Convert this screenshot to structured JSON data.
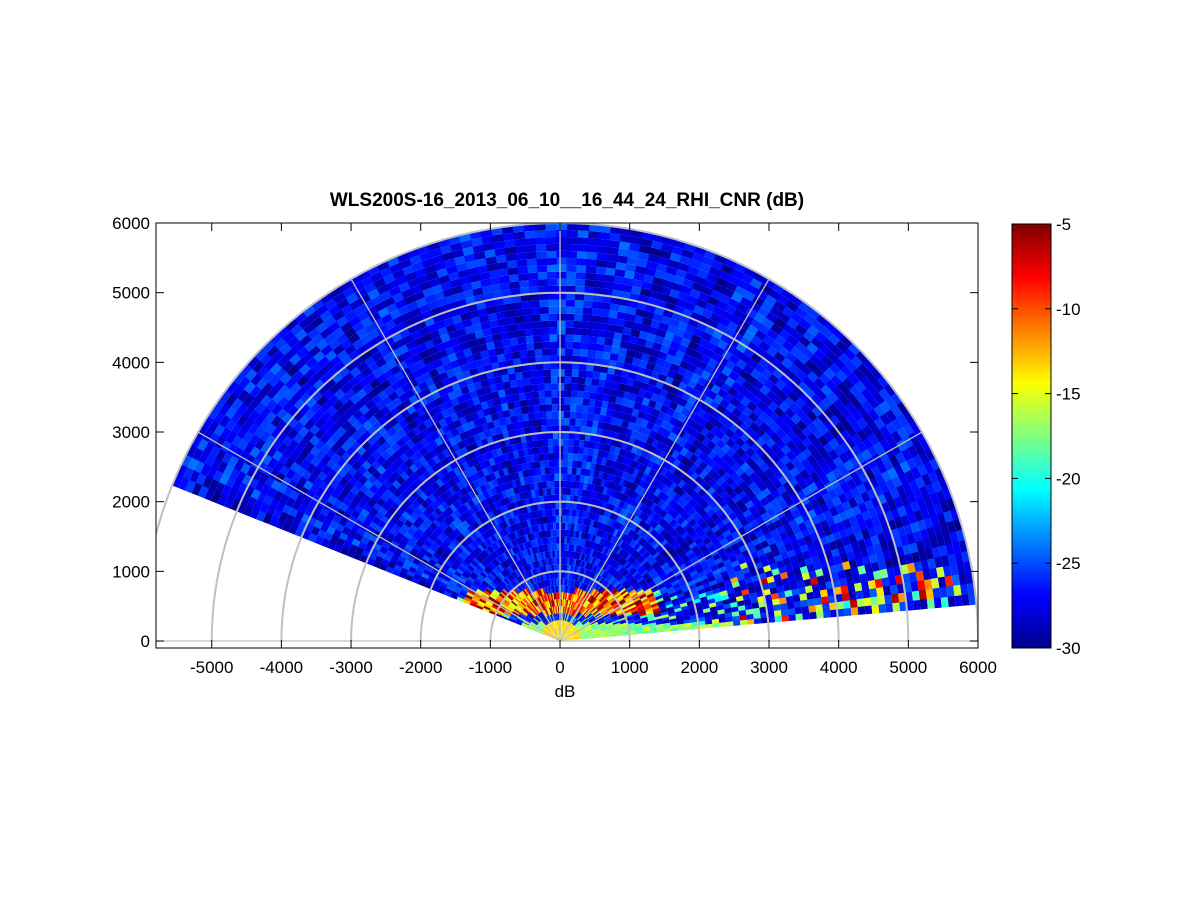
{
  "chart_data": {
    "type": "heatmap",
    "title": "WLS200S-16_2013_06_10__16_44_24_RHI_CNR (dB)",
    "xlabel": "dB",
    "ylabel": "",
    "xlim": [
      -5800,
      6000
    ],
    "ylim": [
      -100,
      6000
    ],
    "x_ticks": [
      -5000,
      -4000,
      -3000,
      -2000,
      -1000,
      0,
      1000,
      2000,
      3000,
      4000,
      5000,
      6000
    ],
    "y_ticks": [
      0,
      1000,
      2000,
      3000,
      4000,
      5000,
      6000
    ],
    "polar_grid": {
      "range_rings": [
        1000,
        2000,
        3000,
        4000,
        5000,
        6000
      ],
      "spokes_deg": [
        0,
        30,
        60,
        90,
        120,
        150,
        180
      ]
    },
    "scan": {
      "type": "RHI",
      "azimuth_range_deg": [
        5,
        158
      ],
      "max_range": 6000
    },
    "colorbar": {
      "label": "",
      "clim": [
        -30,
        -5
      ],
      "ticks": [
        -30,
        -25,
        -20,
        -15,
        -10,
        -5
      ],
      "colormap": "jet"
    },
    "features": {
      "background_cnr_db": -27,
      "near_field_boundary_layer_height": 600,
      "aerosol_layer_near_east_range": [
        2500,
        5800
      ]
    }
  },
  "grid_color": "#c0c0c0"
}
